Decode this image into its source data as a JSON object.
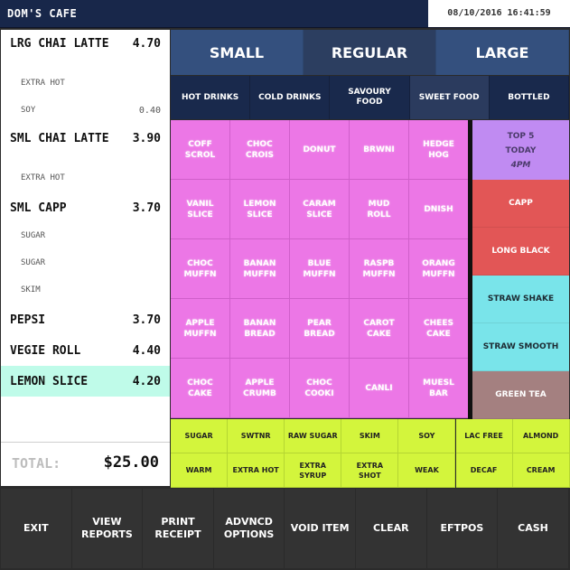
{
  "header": {
    "app_title": "DOM'S CAFE",
    "datetime": "08/10/2016 16:41:59"
  },
  "order": {
    "items": [
      {
        "type": "main",
        "name": "LRG CHAI LATTE",
        "price": "4.70"
      },
      {
        "type": "mod",
        "name": "EXTRA HOT",
        "price": ""
      },
      {
        "type": "mod",
        "name": "SOY",
        "price": "0.40"
      },
      {
        "type": "main",
        "name": "SML CHAI LATTE",
        "price": "3.90"
      },
      {
        "type": "mod",
        "name": "EXTRA HOT",
        "price": ""
      },
      {
        "type": "main",
        "name": "SML CAPP",
        "price": "3.70"
      },
      {
        "type": "mod",
        "name": "SUGAR",
        "price": ""
      },
      {
        "type": "mod",
        "name": "SUGAR",
        "price": ""
      },
      {
        "type": "mod",
        "name": "SKIM",
        "price": ""
      },
      {
        "type": "main",
        "name": "PEPSI",
        "price": "3.70"
      },
      {
        "type": "main",
        "name": "VEGIE ROLL",
        "price": "4.40"
      },
      {
        "type": "main",
        "name": "LEMON SLICE",
        "price": "4.20",
        "selected": true
      }
    ],
    "total_label": "TOTAL:",
    "total_value": "$25.00"
  },
  "sizes": [
    {
      "label": "SMALL",
      "active": false
    },
    {
      "label": "REGULAR",
      "active": true
    },
    {
      "label": "LARGE",
      "active": false
    }
  ],
  "categories": [
    {
      "label": "HOT DRINKS",
      "active": false
    },
    {
      "label": "COLD DRINKS",
      "active": false
    },
    {
      "label": "SAVOURY FOOD",
      "active": false
    },
    {
      "label": "SWEET FOOD",
      "active": true
    },
    {
      "label": "BOTTLED",
      "active": false
    }
  ],
  "products": [
    [
      "COFF SCROL",
      "CHOC CROIS",
      "DONUT",
      "BRWNI",
      "HEDGE HOG"
    ],
    [
      "VANIL SLICE",
      "LEMON SLICE",
      "CARAM SLICE",
      "MUD ROLL",
      "DNISH"
    ],
    [
      "CHOC MUFFN",
      "BANAN MUFFN",
      "BLUE MUFFN",
      "RASPB MUFFN",
      "ORANG MUFFN"
    ],
    [
      "APPLE MUFFN",
      "BANAN BREAD",
      "PEAR BREAD",
      "CAROT CAKE",
      "CHEES CAKE"
    ],
    [
      "CHOC CAKE",
      "APPLE CRUMB",
      "CHOC COOKI",
      "CANLI",
      "MUESL BAR"
    ]
  ],
  "top5": {
    "title": "TOP 5",
    "subtitle": "TODAY",
    "time": "4PM",
    "items": [
      {
        "label": "CAPP",
        "color": "#e25656",
        "text_color": "#ffffff"
      },
      {
        "label": "LONG BLACK",
        "color": "#e25656",
        "text_color": "#ffffff"
      },
      {
        "label": "STRAW SHAKE",
        "color": "#79e4ea",
        "text_color": "#1d2b33"
      },
      {
        "label": "STRAW SMOOTH",
        "color": "#79e4ea",
        "text_color": "#1d2b33"
      },
      {
        "label": "GREEN TEA",
        "color": "#a48080",
        "text_color": "#ffffff"
      }
    ]
  },
  "modifiers": [
    [
      "SUGAR",
      "SWTNR",
      "RAW SUGAR",
      "SKIM",
      "SOY",
      "LAC FREE",
      "ALMOND"
    ],
    [
      "WARM",
      "EXTRA HOT",
      "EXTRA SYRUP",
      "EXTRA SHOT",
      "WEAK",
      "DECAF",
      "CREAM"
    ]
  ],
  "functions": [
    "EXIT",
    "VIEW REPORTS",
    "PRINT RECEIPT",
    "ADVNCD OPTIONS",
    "VOID ITEM",
    "CLEAR",
    "EFTPOS",
    "CASH"
  ],
  "colors": {
    "header_bg": "#18274a",
    "size_bg": "#34507e",
    "category_bg": "#19294c",
    "product_bg": "#ec77e6",
    "modifier_bg": "#d3f53c",
    "function_bg": "#333333",
    "selected_row": "#bffbe9"
  }
}
